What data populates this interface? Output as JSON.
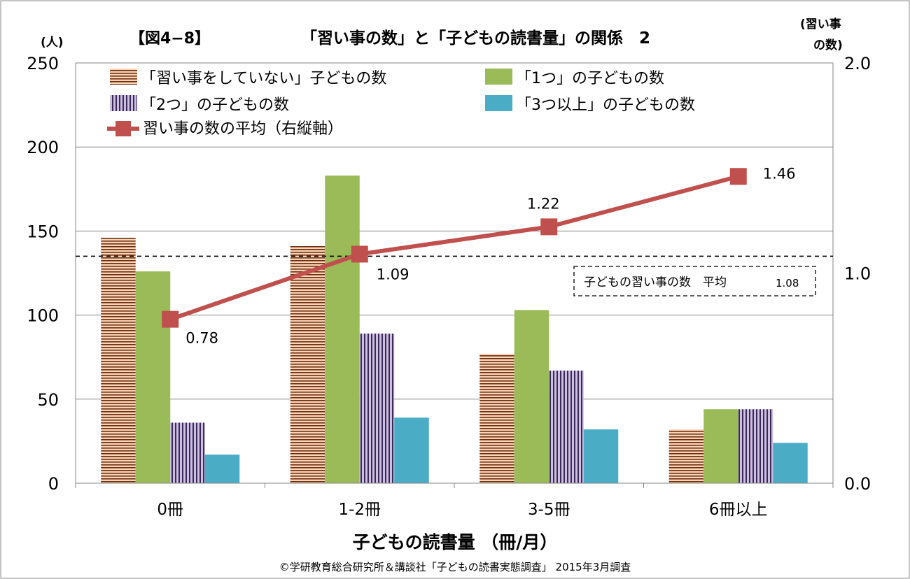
{
  "header": {
    "fig_label": "【図4−8】",
    "title": "「習い事の数」と「子どもの読書量」の関係　2",
    "y_unit_left": "(人)",
    "y_unit_right_line1": "(習い事",
    "y_unit_right_line2": "の数)"
  },
  "footer": {
    "xlabel": "子どもの読書量 （冊/月）",
    "source": "©学研教育総合研究所＆講談社「子どもの読書実態調査」 2015年3月調査"
  },
  "chart_data": {
    "type": "bar",
    "categories": [
      "0冊",
      "1-2冊",
      "3-5冊",
      "6冊以上"
    ],
    "series": [
      {
        "name": "「習い事をしていない」子どもの数",
        "values": [
          146,
          141,
          77,
          32
        ],
        "color": "#f9b88f",
        "pattern": "horizontal-stripes"
      },
      {
        "name": "「1つ」の子どもの数",
        "values": [
          126,
          183,
          103,
          44
        ],
        "color": "#9bbb59",
        "pattern": "solid"
      },
      {
        "name": "「2つ」の子どもの数",
        "values": [
          36,
          89,
          67,
          44
        ],
        "color": "#b3a2c7",
        "pattern": "vertical-stripes"
      },
      {
        "name": "「3つ以上」の子どもの数",
        "values": [
          17,
          39,
          32,
          24
        ],
        "color": "#4bacc6",
        "pattern": "solid"
      }
    ],
    "line_series": {
      "name": "習い事の数の平均（右縦軸）",
      "values": [
        0.78,
        1.09,
        1.22,
        1.46
      ],
      "labels": [
        "0.78",
        "1.09",
        "1.22",
        "1.46"
      ],
      "color": "#c0504d",
      "axis": "right"
    },
    "reference_line": {
      "value": 1.08,
      "axis": "right",
      "style": "dashed",
      "label": "子どもの習い事の数　平均",
      "label_value": "1.08"
    },
    "ylim_left": [
      0,
      250
    ],
    "yticks_left": [
      0,
      50,
      100,
      150,
      200,
      250
    ],
    "ylim_right": [
      0,
      2.0
    ],
    "yticks_right": [
      "0.0",
      "1.0",
      "2.0"
    ],
    "grid": true,
    "legend_position": "top-left"
  }
}
